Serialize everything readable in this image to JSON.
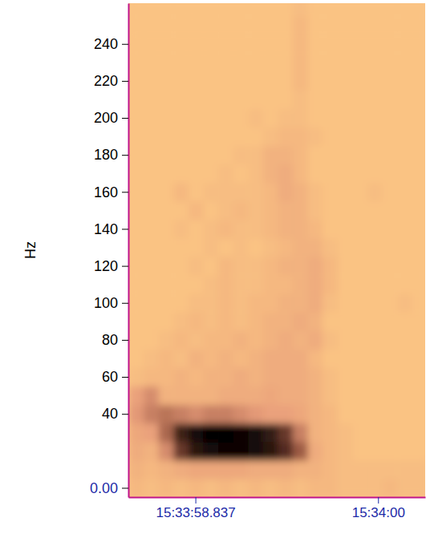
{
  "chart_data": {
    "type": "heatmap",
    "y_label": "Hz",
    "xlim": [
      56038.41,
      56040.3
    ],
    "xticks": [
      {
        "value": 56038.837,
        "label": "15:33:58.837"
      },
      {
        "value": 56040,
        "label": "15:34:00"
      }
    ],
    "ylim": [
      -5,
      262
    ],
    "yticks": [
      {
        "value": 0,
        "label": "0.00"
      },
      40,
      60,
      80,
      100,
      120,
      140,
      160,
      180,
      200,
      220,
      240
    ],
    "heatmap": {
      "x": [
        56038.46,
        56038.555,
        56038.65,
        56038.745,
        56038.84,
        56038.935,
        56039.03,
        56039.125,
        56039.22,
        56039.315,
        56039.41,
        56039.505,
        56039.6,
        56039.695,
        56039.79,
        56039.885,
        56039.98,
        56040.075,
        56040.17,
        56040.265
      ],
      "y": [
        0,
        10,
        20,
        30,
        40,
        50,
        60,
        70,
        80,
        90,
        100,
        110,
        120,
        130,
        140,
        150,
        160,
        170,
        180,
        190,
        200,
        210,
        220,
        230,
        240,
        250,
        260
      ],
      "clim": [
        0,
        100
      ],
      "values": [
        [
          10,
          5,
          10,
          5,
          10,
          5,
          10,
          5,
          10,
          5,
          10,
          5,
          10,
          10,
          5,
          5,
          5,
          10,
          5,
          5
        ],
        [
          15,
          10,
          15,
          20,
          25,
          25,
          25,
          25,
          20,
          20,
          20,
          15,
          15,
          10,
          5,
          5,
          5,
          5,
          5,
          5
        ],
        [
          20,
          15,
          40,
          75,
          90,
          95,
          98,
          98,
          95,
          90,
          80,
          60,
          20,
          10,
          5,
          0,
          0,
          0,
          0,
          0
        ],
        [
          25,
          30,
          55,
          85,
          95,
          100,
          100,
          98,
          95,
          88,
          75,
          45,
          15,
          10,
          5,
          0,
          0,
          0,
          0,
          0
        ],
        [
          35,
          45,
          50,
          45,
          40,
          45,
          45,
          40,
          35,
          30,
          30,
          25,
          15,
          10,
          0,
          0,
          0,
          0,
          0,
          0
        ],
        [
          30,
          40,
          15,
          15,
          15,
          15,
          20,
          20,
          20,
          25,
          20,
          20,
          15,
          5,
          0,
          0,
          0,
          0,
          0,
          0
        ],
        [
          5,
          10,
          10,
          15,
          10,
          15,
          15,
          20,
          15,
          20,
          20,
          20,
          15,
          5,
          0,
          0,
          0,
          0,
          0,
          0
        ],
        [
          0,
          5,
          10,
          5,
          15,
          10,
          15,
          10,
          15,
          20,
          20,
          20,
          10,
          0,
          0,
          0,
          0,
          0,
          0,
          0
        ],
        [
          0,
          0,
          5,
          10,
          5,
          10,
          10,
          15,
          10,
          15,
          20,
          15,
          20,
          5,
          0,
          0,
          0,
          0,
          0,
          0
        ],
        [
          0,
          0,
          0,
          5,
          10,
          5,
          10,
          5,
          10,
          15,
          15,
          20,
          15,
          0,
          0,
          0,
          0,
          0,
          0,
          0
        ],
        [
          0,
          0,
          0,
          0,
          5,
          5,
          10,
          5,
          10,
          10,
          15,
          15,
          20,
          5,
          0,
          0,
          0,
          0,
          5,
          0
        ],
        [
          0,
          0,
          0,
          0,
          0,
          5,
          10,
          5,
          5,
          10,
          10,
          15,
          20,
          10,
          0,
          0,
          0,
          0,
          0,
          0
        ],
        [
          0,
          0,
          0,
          0,
          5,
          0,
          10,
          5,
          5,
          10,
          15,
          15,
          20,
          10,
          0,
          0,
          0,
          0,
          0,
          0
        ],
        [
          0,
          0,
          0,
          0,
          0,
          5,
          0,
          5,
          0,
          5,
          10,
          15,
          15,
          5,
          0,
          0,
          0,
          0,
          0,
          0
        ],
        [
          0,
          0,
          0,
          5,
          0,
          5,
          10,
          5,
          5,
          10,
          15,
          15,
          10,
          0,
          0,
          0,
          0,
          0,
          0,
          0
        ],
        [
          0,
          0,
          0,
          0,
          10,
          0,
          5,
          10,
          5,
          10,
          15,
          15,
          5,
          0,
          0,
          0,
          0,
          0,
          0,
          0
        ],
        [
          0,
          0,
          0,
          10,
          0,
          5,
          5,
          5,
          5,
          10,
          20,
          15,
          5,
          0,
          0,
          0,
          5,
          0,
          0,
          0
        ],
        [
          0,
          0,
          0,
          0,
          0,
          0,
          5,
          0,
          5,
          15,
          20,
          10,
          0,
          0,
          0,
          0,
          0,
          0,
          0,
          0
        ],
        [
          0,
          0,
          0,
          0,
          0,
          0,
          0,
          5,
          5,
          15,
          15,
          10,
          0,
          0,
          0,
          0,
          0,
          0,
          0,
          0
        ],
        [
          0,
          0,
          0,
          0,
          0,
          0,
          0,
          0,
          0,
          5,
          10,
          10,
          5,
          0,
          0,
          0,
          0,
          0,
          0,
          0
        ],
        [
          0,
          0,
          0,
          0,
          0,
          0,
          0,
          0,
          5,
          0,
          5,
          5,
          0,
          0,
          0,
          0,
          0,
          0,
          0,
          0
        ],
        [
          0,
          0,
          0,
          0,
          0,
          0,
          0,
          0,
          0,
          0,
          0,
          5,
          0,
          0,
          0,
          0,
          0,
          0,
          0,
          0
        ],
        [
          0,
          0,
          0,
          0,
          0,
          0,
          0,
          0,
          0,
          0,
          0,
          10,
          0,
          0,
          0,
          0,
          0,
          0,
          0,
          0
        ],
        [
          0,
          0,
          0,
          0,
          0,
          0,
          0,
          0,
          0,
          0,
          0,
          10,
          0,
          0,
          0,
          0,
          0,
          0,
          0,
          0
        ],
        [
          0,
          0,
          0,
          0,
          0,
          0,
          0,
          0,
          0,
          0,
          0,
          10,
          0,
          0,
          0,
          0,
          0,
          0,
          0,
          0
        ],
        [
          0,
          0,
          0,
          0,
          0,
          0,
          0,
          0,
          0,
          0,
          0,
          10,
          0,
          0,
          0,
          0,
          0,
          0,
          0,
          0
        ],
        [
          0,
          0,
          0,
          0,
          0,
          0,
          0,
          0,
          0,
          0,
          0,
          5,
          0,
          0,
          0,
          0,
          0,
          0,
          0,
          0
        ]
      ]
    }
  }
}
